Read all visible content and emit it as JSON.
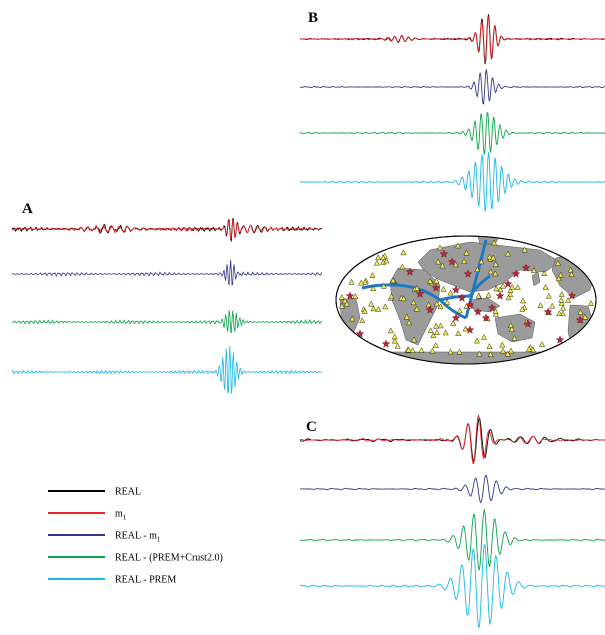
{
  "panels": {
    "a": "A",
    "b": "B",
    "c": "C"
  },
  "legend": [
    {
      "label": "REAL",
      "sub": "",
      "color": "#000000"
    },
    {
      "label": "m",
      "sub": "1",
      "color": "#e8262a"
    },
    {
      "label": "REAL - m",
      "sub": "1",
      "color": "#35378f"
    },
    {
      "label": "REAL - (PREM+Crust2.0)",
      "sub": "",
      "color": "#0aa44a"
    },
    {
      "label": "REAL - PREM",
      "sub": "",
      "color": "#19b8e6"
    }
  ],
  "colors": {
    "real": "#000000",
    "m1": "#e8262a",
    "real_minus_m1": "#35378f",
    "real_minus_prem_crust": "#0aa44a",
    "real_minus_prem": "#19b8e6",
    "land": "#9b9b9b",
    "ocean": "#ffffff",
    "path": "#1f77c8",
    "event_star": "#c0263c",
    "station_triangle": "#f2e94e"
  },
  "map": {
    "projection": "Mollweide",
    "event_symbol": "star-icon",
    "station_symbol": "triangle-icon"
  }
}
